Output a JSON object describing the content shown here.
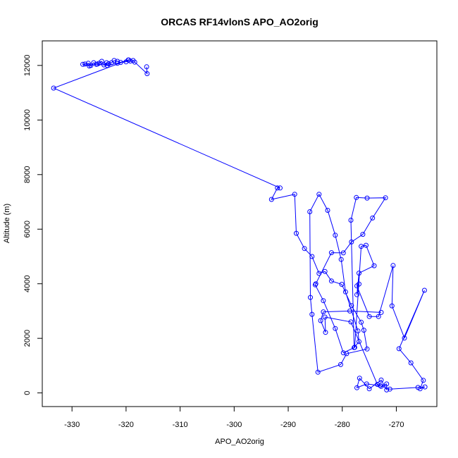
{
  "chart_data": {
    "type": "line",
    "title": "ORCAS RF14vlonS APO_AO2orig",
    "xlabel": "APO_AO2orig",
    "ylabel": "Altitude (m)",
    "xlim": [
      -335.5,
      -262.5
    ],
    "ylim": [
      -500,
      12900
    ],
    "xticks": [
      -330,
      -320,
      -310,
      -300,
      -290,
      -280,
      -270
    ],
    "yticks": [
      0,
      2000,
      4000,
      6000,
      8000,
      10000,
      12000
    ],
    "grid": false,
    "marker": "open-circle",
    "color": "#0000ff",
    "series": [
      {
        "x": [
          -316.2,
          -316.1,
          -318.4,
          -318.7,
          -319.2,
          -319.5,
          -320.0,
          -321.0,
          -321.6,
          -322.2,
          -322.7,
          -323.2,
          -323.6,
          -324.1,
          -324.5,
          -325.0,
          -325.5,
          -326.0,
          -326.5,
          -327.0,
          -327.6,
          -328.0,
          -326.8,
          -325.3,
          -323.5,
          -321.6,
          -319.6,
          -333.4,
          -291.5,
          -292.0,
          -293.1,
          -288.8,
          -288.5,
          -287.0,
          -285.6,
          -284.3,
          -283.2,
          -282.0,
          -280.1,
          -278.3,
          -276.5,
          -276.0,
          -275.4,
          -279.2,
          -280.3,
          -284.5,
          -285.6,
          -285.9,
          -286.0,
          -284.3,
          -282.7,
          -281.3,
          -280.2,
          -279.4,
          -277.1,
          -276.9,
          -277.8,
          -278.4,
          -277.4,
          -275.4,
          -272.0,
          -274.4,
          -276.2,
          -278.3,
          -279.8,
          -282.0,
          -284.9,
          -285.0,
          -283.5,
          -281.3,
          -279.8,
          -277.7,
          -276.5,
          -275.6,
          -274.1,
          -276.9,
          -277.3,
          -276.9,
          -277.3,
          -275.0,
          -273.3,
          -270.6,
          -270.8,
          -268.5,
          -264.8,
          -269.5,
          -267.3,
          -265.0,
          -265.6,
          -264.7,
          -266.0,
          -271.2,
          -273.0,
          -275.5,
          -277.3,
          -276.8,
          -275.0,
          -272.8,
          -271.8,
          -271.8,
          -272.8,
          -273.5,
          -278.4,
          -283.2,
          -283.1,
          -284.0,
          -283.5,
          -278.6,
          -272.8
        ],
        "y": [
          11950,
          11700,
          12120,
          12180,
          12160,
          12200,
          12130,
          12110,
          12150,
          12180,
          12100,
          12060,
          12100,
          12020,
          12150,
          12080,
          12040,
          12100,
          12000,
          12080,
          12050,
          12040,
          11980,
          12050,
          12000,
          12080,
          12200,
          11170,
          7510,
          7510,
          7090,
          7280,
          5850,
          5290,
          5000,
          4380,
          4450,
          4100,
          3980,
          3200,
          2590,
          2300,
          1610,
          1440,
          1040,
          760,
          2880,
          3500,
          6640,
          7280,
          6690,
          5780,
          4890,
          3700,
          2270,
          1880,
          1660,
          6330,
          7160,
          7140,
          7150,
          6410,
          5810,
          5530,
          5130,
          5140,
          4000,
          3960,
          3380,
          2360,
          1470,
          1670,
          5370,
          5410,
          4660,
          4390,
          3600,
          3990,
          3920,
          2800,
          2800,
          4670,
          3190,
          2010,
          3760,
          1620,
          1100,
          460,
          150,
          220,
          200,
          140,
          270,
          330,
          190,
          540,
          150,
          470,
          110,
          330,
          240,
          310,
          2600,
          2780,
          2220,
          2650,
          2970,
          3000,
          2950
        ]
      }
    ]
  }
}
